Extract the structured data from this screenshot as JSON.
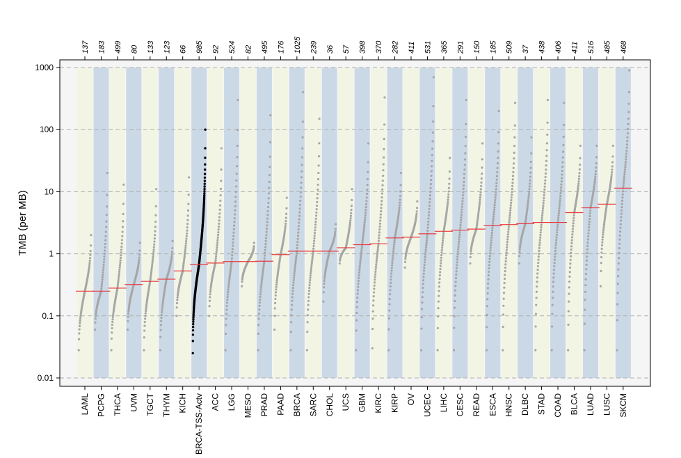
{
  "chart_data": {
    "type": "scatter",
    "title": "",
    "xlabel": "",
    "ylabel": "TMB (per MB)",
    "yscale": "log",
    "ylim": [
      0.01,
      1000
    ],
    "yticks": [
      0.01,
      0.1,
      1,
      10,
      100,
      1000
    ],
    "ytick_labels": [
      "0.01",
      "0.1",
      "1",
      "10",
      "100",
      "1000"
    ],
    "grid": "horizontal dashed",
    "highlight_color": "#000000",
    "point_color": "#a6a6a6",
    "median_color": "#e8393d",
    "band_colors": [
      "#f2f5e4",
      "#cbd9e6"
    ],
    "categories": [
      "LAML",
      "PCPG",
      "THCA",
      "UVM",
      "TGCT",
      "THYM",
      "KICH",
      "BRCA-TSS-Actv",
      "ACC",
      "LGG",
      "MESO",
      "PRAD",
      "PAAD",
      "BRCA",
      "SARC",
      "CHOL",
      "UCS",
      "GBM",
      "KIRC",
      "KIRP",
      "OV",
      "UCEC",
      "LIHC",
      "CESC",
      "READ",
      "ESCA",
      "HNSC",
      "DLBC",
      "STAD",
      "COAD",
      "BLCA",
      "LUAD",
      "LUSC",
      "SKCM"
    ],
    "counts": [
      "137",
      "183",
      "499",
      "80",
      "133",
      "123",
      "66",
      "985",
      "92",
      "524",
      "82",
      "495",
      "176",
      "1025",
      "239",
      "36",
      "57",
      "398",
      "370",
      "282",
      "411",
      "531",
      "365",
      "291",
      "150",
      "185",
      "509",
      "37",
      "438",
      "406",
      "411",
      "516",
      "485",
      "468"
    ],
    "medians": [
      0.25,
      0.25,
      0.28,
      0.32,
      0.36,
      0.39,
      0.53,
      0.67,
      0.71,
      0.75,
      0.75,
      0.76,
      0.97,
      1.1,
      1.1,
      1.1,
      1.25,
      1.4,
      1.45,
      1.8,
      1.85,
      2.1,
      2.3,
      2.4,
      2.5,
      2.85,
      2.95,
      3.05,
      3.2,
      3.2,
      4.6,
      5.5,
      6.3,
      11.4
    ],
    "min_values": [
      0.028,
      0.06,
      0.028,
      0.06,
      0.028,
      0.028,
      0.1,
      0.025,
      0.1,
      0.028,
      0.3,
      0.028,
      0.06,
      0.028,
      0.028,
      0.17,
      0.7,
      0.028,
      0.03,
      0.028,
      0.6,
      0.028,
      0.028,
      0.028,
      0.7,
      0.028,
      0.028,
      0.7,
      0.028,
      0.028,
      0.028,
      0.028,
      0.3,
      0.028
    ],
    "max_values": [
      2,
      20,
      13,
      1.5,
      11,
      1.6,
      17,
      100,
      50,
      300,
      1.5,
      170,
      8,
      400,
      150,
      3,
      11,
      60,
      330,
      20,
      7,
      700,
      35,
      300,
      60,
      200,
      270,
      75,
      300,
      270,
      55,
      55,
      55,
      900
    ],
    "highlight_category": "BRCA-TSS-Actv"
  }
}
